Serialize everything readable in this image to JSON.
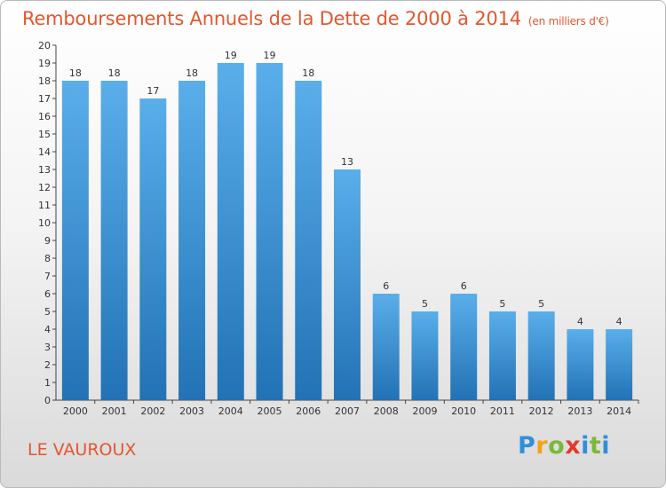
{
  "title": "Remboursements Annuels de la Dette de 2000 à 2014",
  "unit": "(en milliers d'€)",
  "commune": "LE VAUROUX",
  "logo": {
    "text": "Proxiti",
    "letters": [
      "P",
      "r",
      "o",
      "x",
      "i",
      "t",
      "i"
    ],
    "colors": [
      "#2f8fdb",
      "#f2a21a",
      "#7bb83a",
      "#e03a2f",
      "#2f8fdb",
      "#7bb83a",
      "#2f8fdb"
    ]
  },
  "colors": {
    "bar_top": "#5aaeea",
    "bar_bottom": "#2272b5",
    "text": "#e5562e"
  },
  "chart_data": {
    "type": "bar",
    "categories": [
      "2000",
      "2001",
      "2002",
      "2003",
      "2004",
      "2005",
      "2006",
      "2007",
      "2008",
      "2009",
      "2010",
      "2011",
      "2012",
      "2013",
      "2014"
    ],
    "values": [
      18,
      18,
      17,
      18,
      19,
      19,
      18,
      13,
      6,
      5,
      6,
      5,
      5,
      4,
      4
    ],
    "ylim": [
      0,
      20
    ],
    "yticks": [
      0,
      1,
      2,
      3,
      4,
      5,
      6,
      7,
      8,
      9,
      10,
      11,
      12,
      13,
      14,
      15,
      16,
      17,
      18,
      19,
      20
    ],
    "grid": false,
    "data_labels": true
  }
}
